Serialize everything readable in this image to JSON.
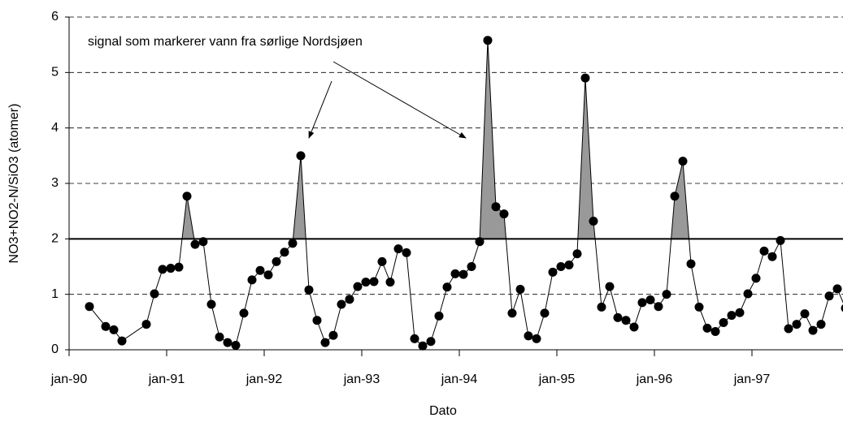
{
  "chart_data": {
    "type": "line",
    "x_label": "Dato",
    "y_label": "NO3+NO2-N/SiO3 (atomer)",
    "annotation": "signal som markerer vann fra sørlige Nordsjøen",
    "threshold": 2,
    "series": [
      {
        "color": "#000000",
        "fill": "#999999",
        "x": [
          "1990-03",
          "1990-05",
          "1990-06",
          "1990-07",
          "1990-10",
          "1990-11",
          "1990-12",
          "1991-01",
          "1991-02",
          "1991-03",
          "1991-04",
          "1991-05",
          "1991-06",
          "1991-07",
          "1991-08",
          "1991-09",
          "1991-10",
          "1991-11",
          "1991-12",
          "1992-01",
          "1992-02",
          "1992-03",
          "1992-04",
          "1992-05",
          "1992-06",
          "1992-07",
          "1992-08",
          "1992-09",
          "1992-10",
          "1992-11",
          "1992-12",
          "1993-01",
          "1993-02",
          "1993-03",
          "1993-04",
          "1993-05",
          "1993-06",
          "1993-07",
          "1993-08",
          "1993-09",
          "1993-10",
          "1993-11",
          "1993-12",
          "1994-01",
          "1994-02",
          "1994-03",
          "1994-04",
          "1994-05",
          "1994-06",
          "1994-07",
          "1994-08",
          "1994-09",
          "1994-10",
          "1994-11",
          "1994-12",
          "1995-01",
          "1995-02",
          "1995-03",
          "1995-04",
          "1995-05",
          "1995-06",
          "1995-07",
          "1995-08",
          "1995-09",
          "1995-10",
          "1995-11",
          "1995-12",
          "1996-01",
          "1996-02",
          "1996-03",
          "1996-04",
          "1996-05",
          "1996-06",
          "1996-07",
          "1996-08",
          "1996-09",
          "1996-10",
          "1996-11",
          "1996-12",
          "1997-01",
          "1997-02",
          "1997-03",
          "1997-04",
          "1997-05",
          "1997-06",
          "1997-07",
          "1997-08",
          "1997-09",
          "1997-10",
          "1997-11",
          "1997-12"
        ],
        "values": [
          0.78,
          0.42,
          0.36,
          0.16,
          0.46,
          1.01,
          1.45,
          1.47,
          1.49,
          2.77,
          1.9,
          1.95,
          0.82,
          0.23,
          0.13,
          0.08,
          0.66,
          1.26,
          1.43,
          1.35,
          1.59,
          1.76,
          1.92,
          3.5,
          1.08,
          0.53,
          0.13,
          0.26,
          0.82,
          0.91,
          1.14,
          1.22,
          1.23,
          1.59,
          1.22,
          1.82,
          1.75,
          0.2,
          0.07,
          0.15,
          0.61,
          1.13,
          1.37,
          1.36,
          1.5,
          1.95,
          5.58,
          2.58,
          2.45,
          0.66,
          1.09,
          0.25,
          0.2,
          0.66,
          1.4,
          1.5,
          1.53,
          1.73,
          4.9,
          2.32,
          0.77,
          1.14,
          0.58,
          0.53,
          0.41,
          0.85,
          0.9,
          0.78,
          1.0,
          2.77,
          3.4,
          1.55,
          0.77,
          0.39,
          0.33,
          0.49,
          0.62,
          0.67,
          1.01,
          1.29,
          1.78,
          1.68,
          1.97,
          0.38,
          0.46,
          0.65,
          0.35,
          0.46,
          0.97,
          1.1,
          0.75
        ]
      }
    ],
    "xlim": [
      "1990-01",
      "1997-12"
    ],
    "xticks": [
      {
        "value": "1990-01",
        "label": "jan-90"
      },
      {
        "value": "1991-01",
        "label": "jan-91"
      },
      {
        "value": "1992-01",
        "label": "jan-92"
      },
      {
        "value": "1993-01",
        "label": "jan-93"
      },
      {
        "value": "1994-01",
        "label": "jan-94"
      },
      {
        "value": "1995-01",
        "label": "jan-95"
      },
      {
        "value": "1996-01",
        "label": "jan-96"
      },
      {
        "value": "1997-01",
        "label": "jan-97"
      }
    ],
    "ylim": [
      0,
      6
    ],
    "yticks": [
      0,
      1,
      2,
      3,
      4,
      5,
      6
    ],
    "grid": true
  }
}
